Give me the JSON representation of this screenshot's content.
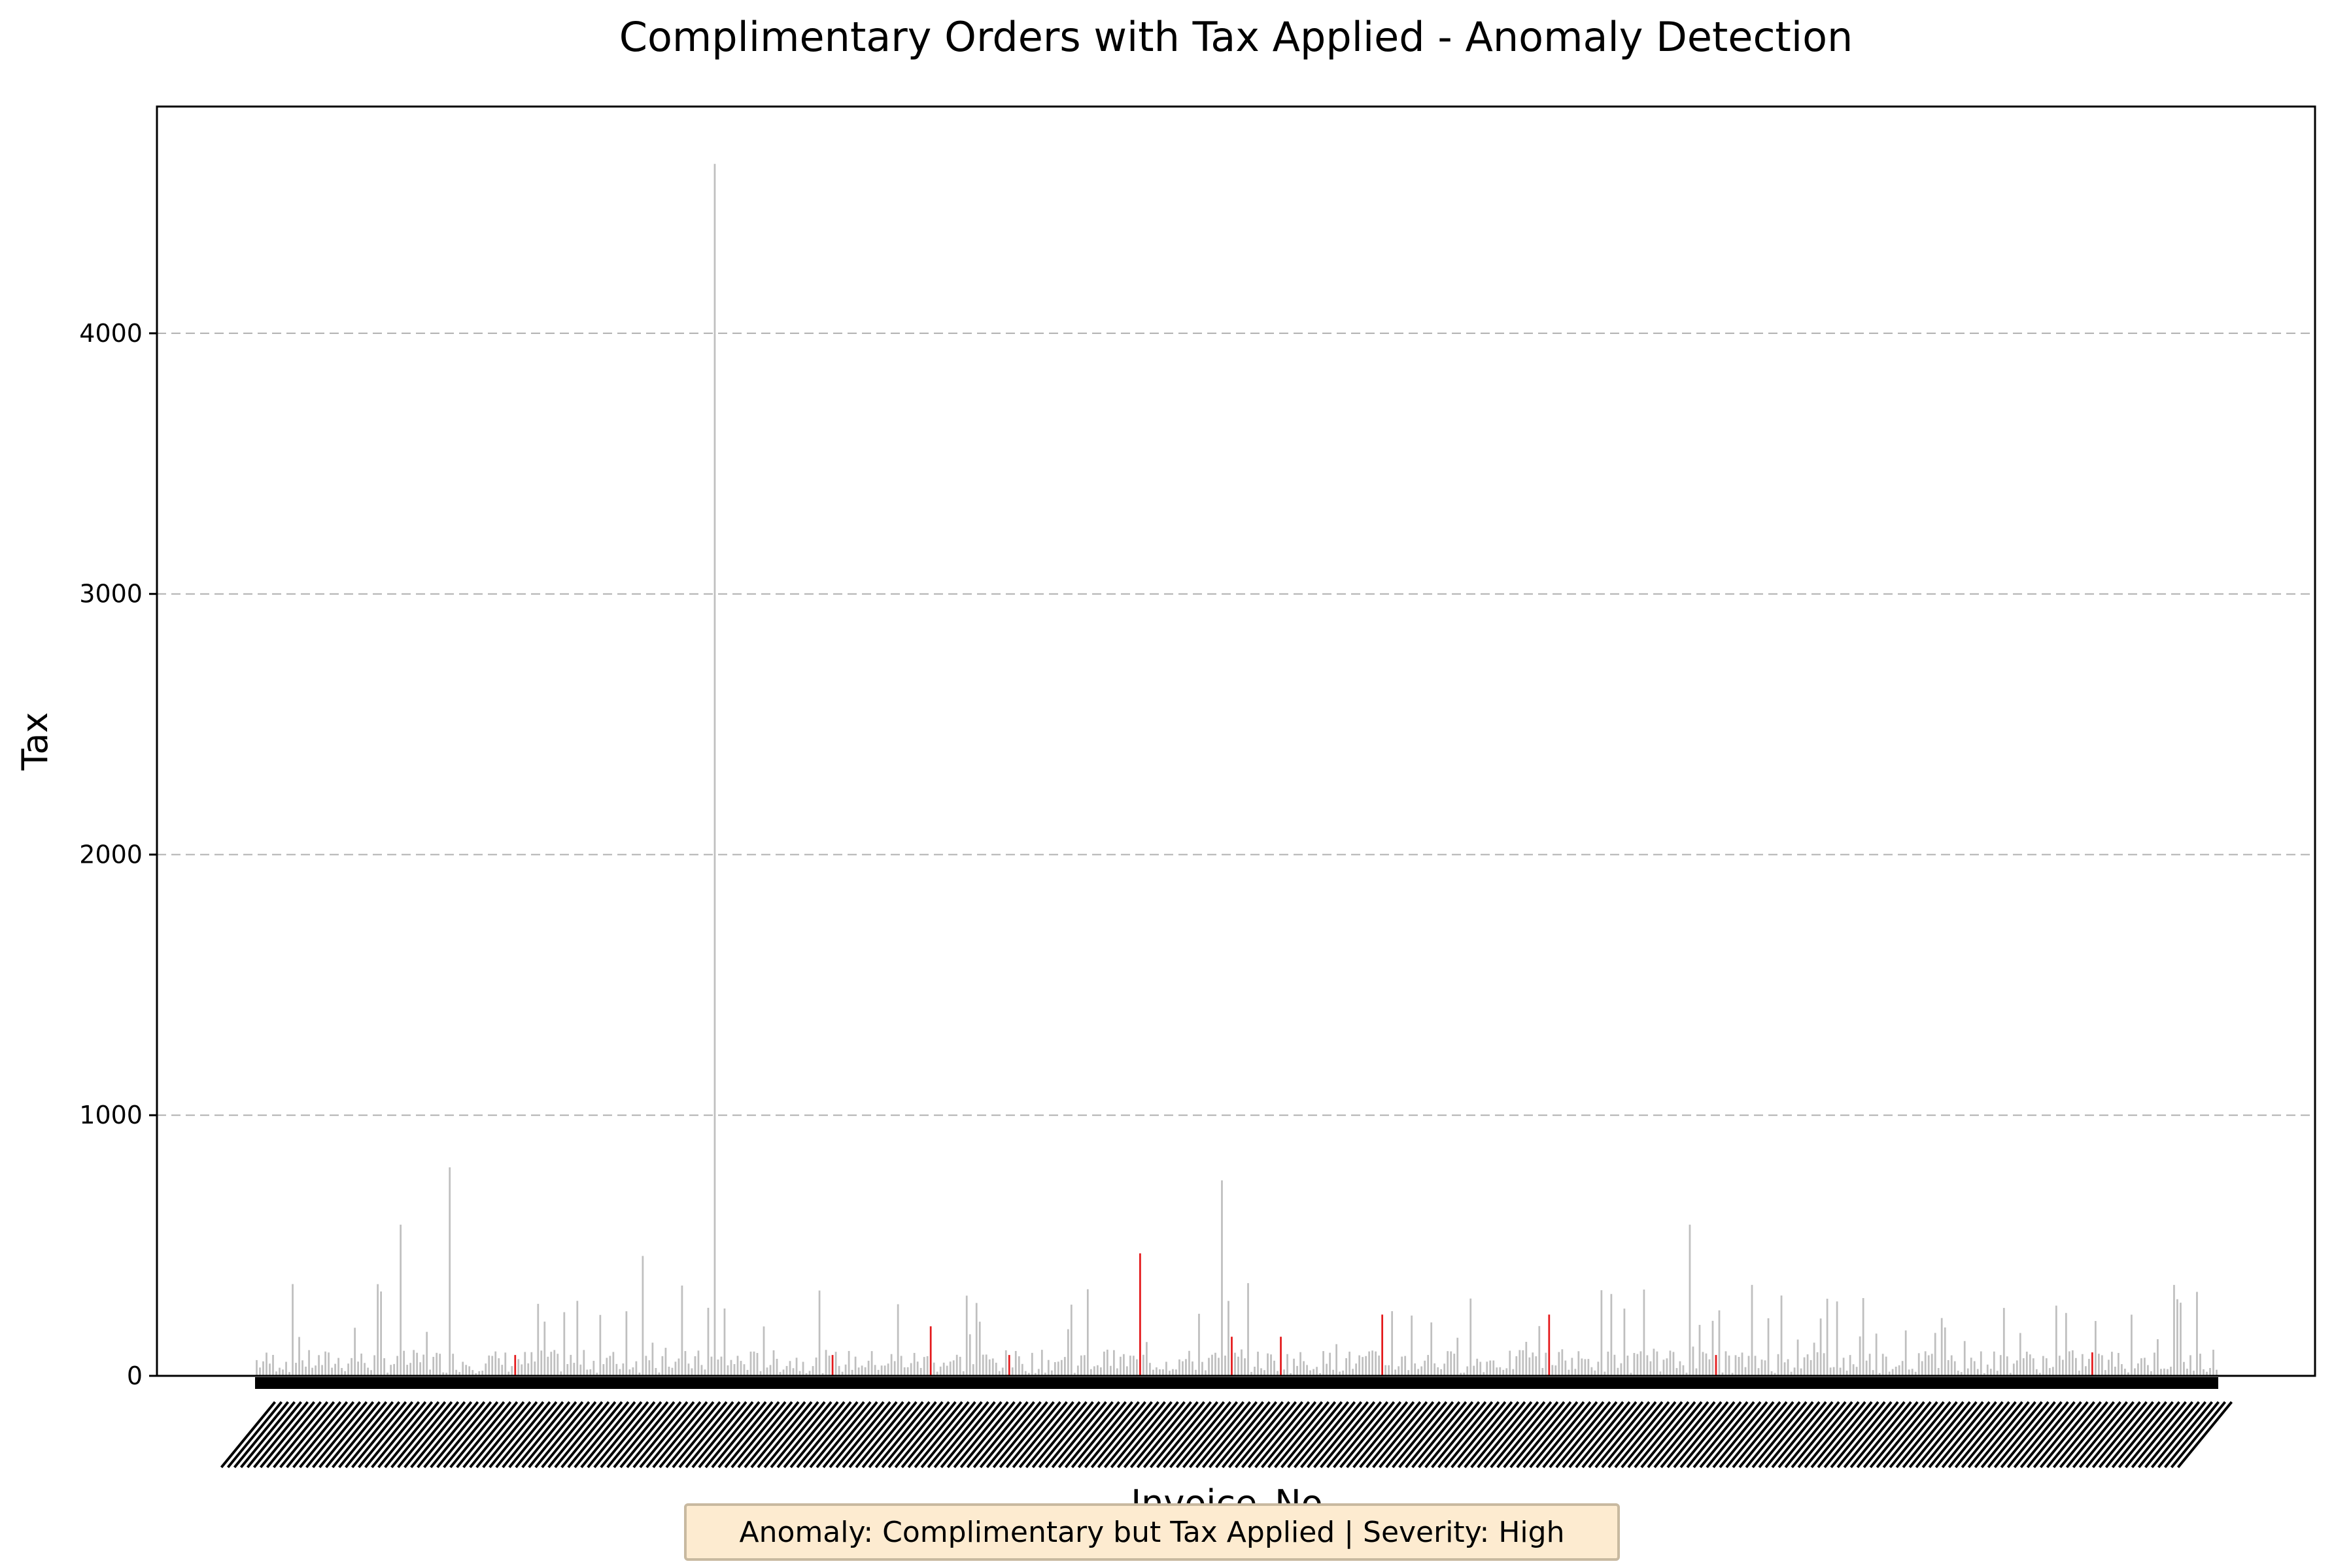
{
  "chart_data": {
    "type": "bar",
    "title": "Complimentary Orders with Tax Applied - Anomaly Detection",
    "xlabel": "Invoice_No",
    "ylabel": "Tax",
    "ylim": [
      0,
      4870
    ],
    "yticks": [
      0,
      1000,
      2000,
      3000,
      4000
    ],
    "grid": "y",
    "bar_count": 600,
    "colors": {
      "normal": "#bfbfbf",
      "anomaly": "#e41a1c",
      "grid": "#b0b0b0",
      "tick_label_band": "#000000",
      "annotation_bg": "#fdebd0"
    },
    "notable_values": [
      {
        "index": 140,
        "value": 4650,
        "anomaly": false
      },
      {
        "index": 59,
        "value": 800,
        "anomaly": false
      },
      {
        "index": 295,
        "value": 750,
        "anomaly": false
      },
      {
        "index": 44,
        "value": 580,
        "anomaly": false
      },
      {
        "index": 438,
        "value": 580,
        "anomaly": false
      },
      {
        "index": 118,
        "value": 460,
        "anomaly": false
      },
      {
        "index": 270,
        "value": 470,
        "anomaly": true
      },
      {
        "index": 206,
        "value": 190,
        "anomaly": true
      },
      {
        "index": 344,
        "value": 235,
        "anomaly": true
      },
      {
        "index": 395,
        "value": 235,
        "anomaly": true
      },
      {
        "index": 298,
        "value": 150,
        "anomaly": true
      },
      {
        "index": 313,
        "value": 150,
        "anomaly": true
      },
      {
        "index": 79,
        "value": 80,
        "anomaly": true
      },
      {
        "index": 176,
        "value": 80,
        "anomaly": true
      },
      {
        "index": 230,
        "value": 80,
        "anomaly": true
      },
      {
        "index": 446,
        "value": 80,
        "anomaly": true
      },
      {
        "index": 561,
        "value": 90,
        "anomaly": true
      }
    ]
  },
  "annotation": "Anomaly: Complimentary but Tax Applied | Severity: High"
}
